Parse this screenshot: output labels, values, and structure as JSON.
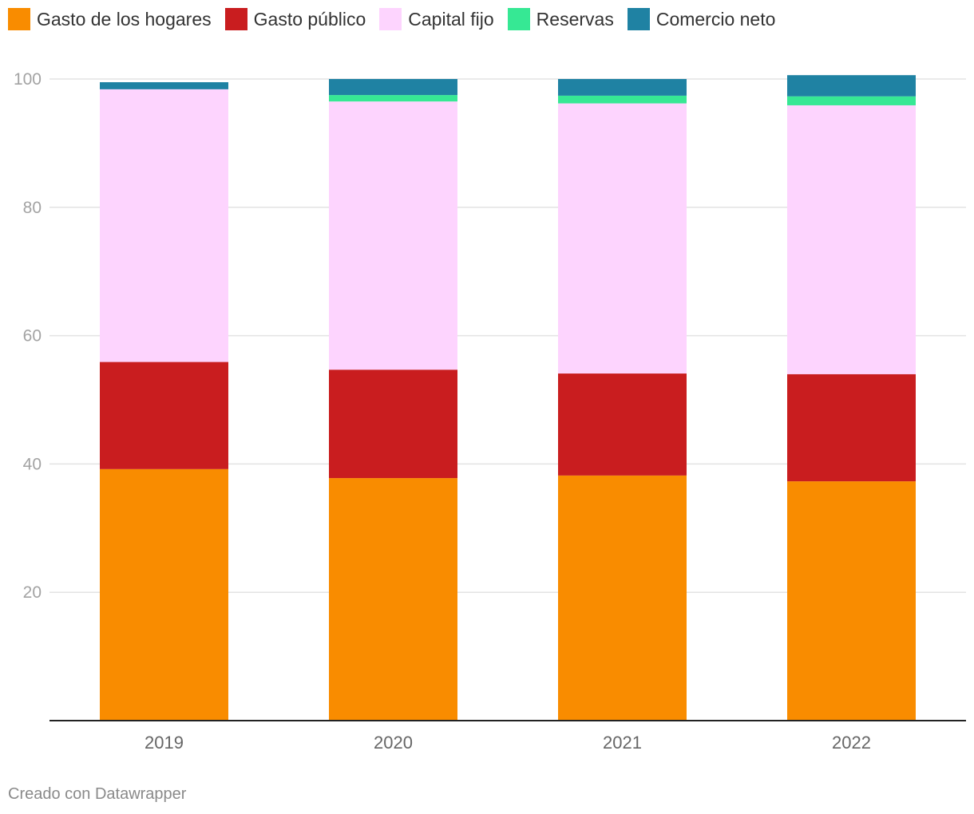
{
  "chart_data": {
    "type": "bar",
    "stacked": true,
    "title": "",
    "xlabel": "",
    "ylabel": "",
    "ylim": [
      0,
      100
    ],
    "yticks": [
      20,
      40,
      60,
      80,
      100
    ],
    "grid": true,
    "legend_position": "top-left",
    "categories": [
      "2019",
      "2020",
      "2021",
      "2022"
    ],
    "series": [
      {
        "name": "Gasto de los hogares",
        "color": "#f98c00",
        "values": [
          39.2,
          37.8,
          38.2,
          37.3
        ]
      },
      {
        "name": "Gasto público",
        "color": "#c91d1f",
        "values": [
          16.7,
          16.9,
          15.9,
          16.7
        ]
      },
      {
        "name": "Capital fijo",
        "color": "#fdd4fe",
        "values": [
          42.5,
          41.8,
          42.1,
          41.9
        ]
      },
      {
        "name": "Reservas",
        "color": "#36e894",
        "values": [
          0.0,
          1.0,
          1.2,
          1.4
        ]
      },
      {
        "name": "Comercio neto",
        "color": "#1f82a3",
        "values": [
          1.1,
          2.5,
          2.6,
          3.3
        ]
      }
    ]
  },
  "footer": {
    "credit": "Creado con Datawrapper"
  }
}
